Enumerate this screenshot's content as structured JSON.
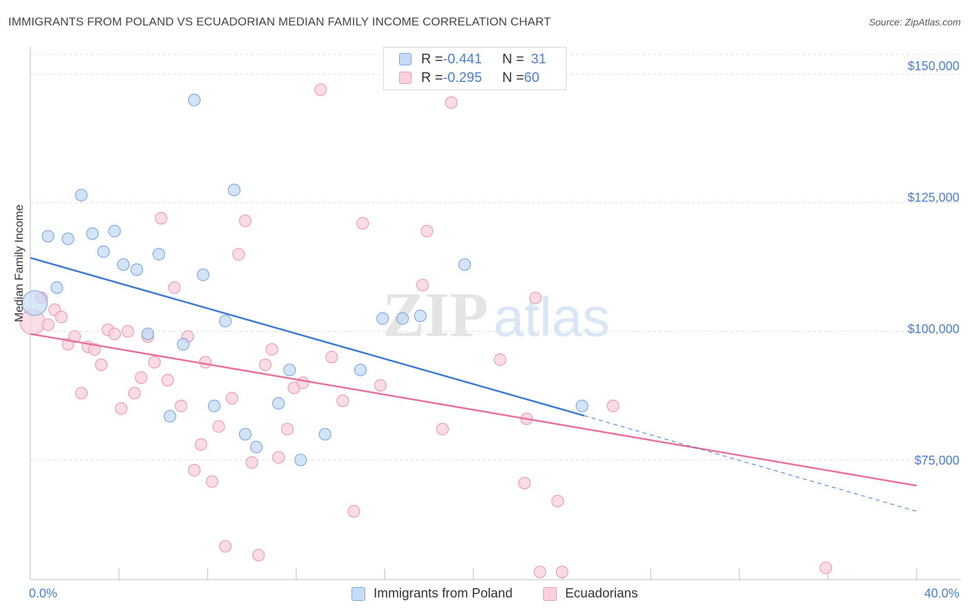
{
  "title": "IMMIGRANTS FROM POLAND VS ECUADORIAN MEDIAN FAMILY INCOME CORRELATION CHART",
  "source": "Source: ZipAtlas.com",
  "watermark": "ZIPatlas",
  "legend": {
    "rows": [
      {
        "r_label": "R = ",
        "r_value": "-0.441",
        "n_label": "N = ",
        "n_value": "31",
        "color": "#a8c8f0"
      },
      {
        "r_label": "R = ",
        "r_value": "-0.295",
        "n_label": "N = ",
        "n_value": "60",
        "color": "#f5b8ca"
      }
    ]
  },
  "colors": {
    "blue_fill": "#c6dbf5",
    "blue_stroke": "#7fa8e0",
    "blue_line": "#3a78d4",
    "pink_fill": "#f9d0dc",
    "pink_stroke": "#ec9db6",
    "pink_line": "#e8709a",
    "tick_label": "#4a7fd1",
    "grid": "#dddddd"
  },
  "chart_data": {
    "type": "scatter",
    "title": "IMMIGRANTS FROM POLAND VS ECUADORIAN MEDIAN FAMILY INCOME CORRELATION CHART",
    "xlabel": "",
    "ylabel": "Median Family Income",
    "xlim": [
      0,
      40
    ],
    "ylim": [
      52000,
      154000
    ],
    "x_tick_labels": [
      "0.0%",
      "40.0%"
    ],
    "y_tick_labels": [
      "$150,000",
      "$125,000",
      "$100,000",
      "$75,000"
    ],
    "y_ticks": [
      150000,
      125000,
      100000,
      75000
    ],
    "grid": true,
    "legend_position": "top-center",
    "series": [
      {
        "name": "Immigrants from Poland",
        "r": -0.441,
        "n": 31,
        "points": [
          [
            0.2,
            105500
          ],
          [
            0.8,
            118500
          ],
          [
            1.2,
            108500
          ],
          [
            1.7,
            118000
          ],
          [
            2.3,
            126500
          ],
          [
            2.8,
            119000
          ],
          [
            3.3,
            115500
          ],
          [
            3.8,
            119500
          ],
          [
            4.2,
            113000
          ],
          [
            4.8,
            112000
          ],
          [
            5.3,
            99500
          ],
          [
            5.8,
            115000
          ],
          [
            6.3,
            83500
          ],
          [
            6.9,
            97500
          ],
          [
            7.4,
            145000
          ],
          [
            7.8,
            111000
          ],
          [
            8.3,
            85500
          ],
          [
            8.8,
            102000
          ],
          [
            9.2,
            127500
          ],
          [
            9.7,
            80000
          ],
          [
            10.2,
            77500
          ],
          [
            11.2,
            86000
          ],
          [
            11.7,
            92500
          ],
          [
            12.2,
            75000
          ],
          [
            13.3,
            80000
          ],
          [
            14.9,
            92500
          ],
          [
            15.9,
            102500
          ],
          [
            16.8,
            102500
          ],
          [
            17.6,
            103000
          ],
          [
            19.6,
            113000
          ],
          [
            24.9,
            85500
          ]
        ],
        "trend": {
          "x": [
            0,
            25
          ],
          "y": [
            114300,
            83600
          ]
        },
        "trend_extension": {
          "x": [
            25,
            40
          ],
          "y": [
            83600,
            65000
          ]
        }
      },
      {
        "name": "Ecuadorians",
        "r": -0.295,
        "n": 60,
        "points": [
          [
            0.1,
            101800
          ],
          [
            0.5,
            106500
          ],
          [
            0.8,
            101300
          ],
          [
            1.1,
            104200
          ],
          [
            1.4,
            102800
          ],
          [
            1.7,
            97500
          ],
          [
            2.0,
            99000
          ],
          [
            2.3,
            88000
          ],
          [
            2.6,
            97000
          ],
          [
            2.9,
            96500
          ],
          [
            3.2,
            93500
          ],
          [
            3.5,
            100300
          ],
          [
            3.8,
            99500
          ],
          [
            4.1,
            85000
          ],
          [
            4.4,
            100000
          ],
          [
            4.7,
            88000
          ],
          [
            5.0,
            91000
          ],
          [
            5.3,
            99000
          ],
          [
            5.6,
            94000
          ],
          [
            5.9,
            122000
          ],
          [
            6.2,
            90500
          ],
          [
            6.5,
            108500
          ],
          [
            6.8,
            85500
          ],
          [
            7.1,
            99000
          ],
          [
            7.4,
            73000
          ],
          [
            7.7,
            78000
          ],
          [
            7.9,
            94000
          ],
          [
            8.2,
            70800
          ],
          [
            8.5,
            81500
          ],
          [
            8.8,
            58200
          ],
          [
            9.1,
            87000
          ],
          [
            9.4,
            115000
          ],
          [
            9.7,
            121500
          ],
          [
            10.0,
            74500
          ],
          [
            10.3,
            56500
          ],
          [
            10.6,
            93500
          ],
          [
            10.9,
            96500
          ],
          [
            11.2,
            75500
          ],
          [
            11.6,
            81000
          ],
          [
            11.9,
            89000
          ],
          [
            12.3,
            90000
          ],
          [
            13.1,
            147000
          ],
          [
            13.6,
            95000
          ],
          [
            14.1,
            86500
          ],
          [
            14.6,
            65000
          ],
          [
            15.0,
            121000
          ],
          [
            15.8,
            89500
          ],
          [
            17.7,
            109000
          ],
          [
            17.9,
            119500
          ],
          [
            18.6,
            81000
          ],
          [
            19.0,
            144500
          ],
          [
            21.2,
            94500
          ],
          [
            22.3,
            70500
          ],
          [
            22.4,
            83000
          ],
          [
            22.8,
            106500
          ],
          [
            23.0,
            53200
          ],
          [
            23.8,
            67000
          ],
          [
            24.0,
            53200
          ],
          [
            26.3,
            85500
          ],
          [
            35.9,
            54000
          ]
        ],
        "trend": {
          "x": [
            0,
            40
          ],
          "y": [
            99500,
            70000
          ]
        }
      }
    ]
  },
  "bottom_legend": [
    {
      "label": "Immigrants from Poland",
      "color": "blue"
    },
    {
      "label": "Ecuadorians",
      "color": "pink"
    }
  ]
}
